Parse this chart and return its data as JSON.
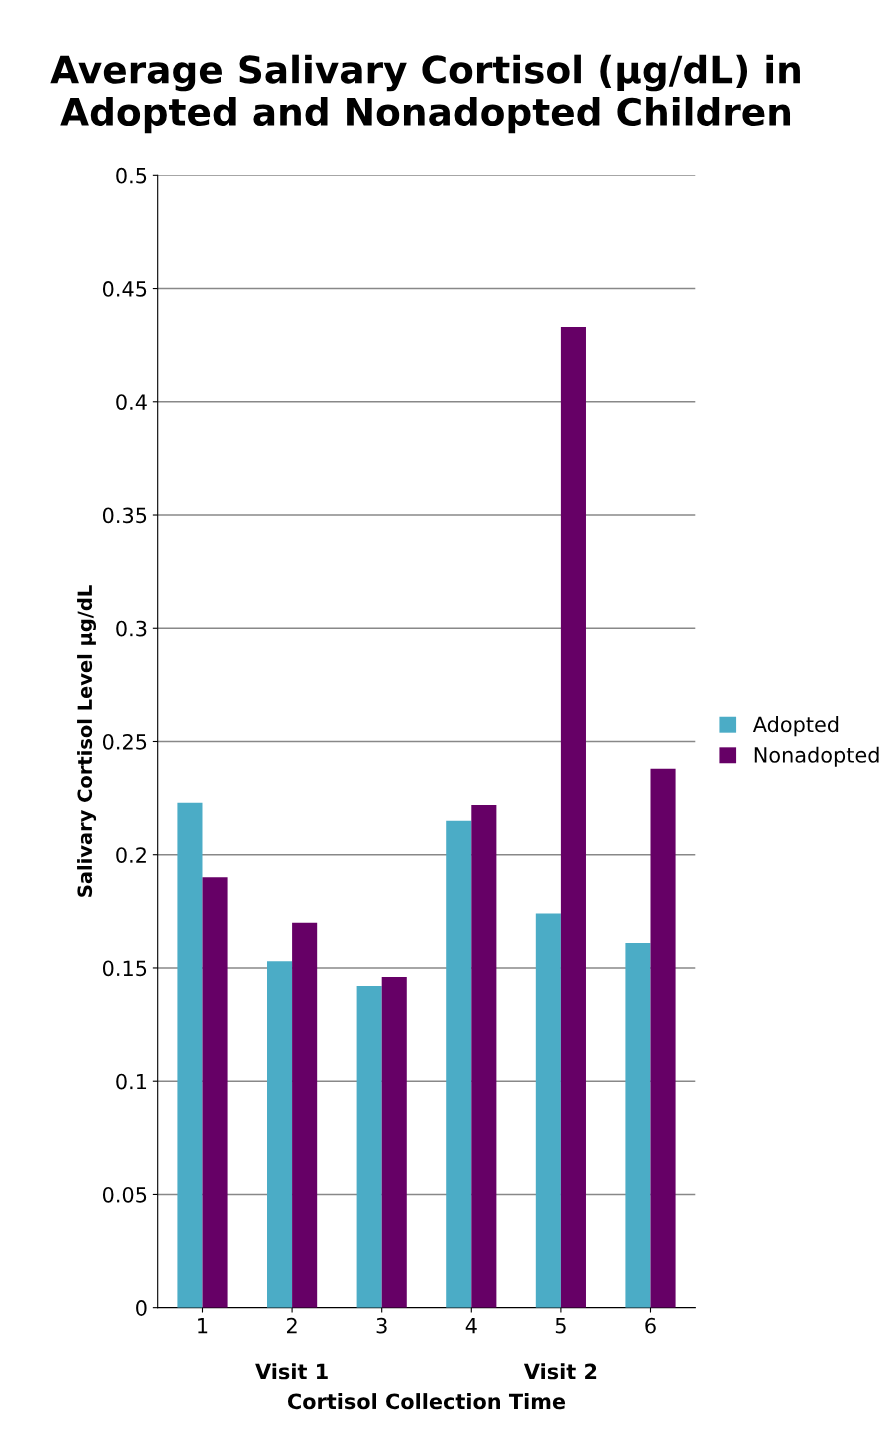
{
  "chart_data": {
    "type": "bar",
    "title": "Average Salivary Cortisol (µg/dL) in Adopted and Nonadopted Children",
    "ylabel": "Salivary Cortisol Level µg/dL",
    "xlabel": "Cortisol Collection Time",
    "categories": [
      "1",
      "2",
      "3",
      "4",
      "5",
      "6"
    ],
    "series": [
      {
        "name": "Adopted",
        "color": "#4bacc6",
        "values": [
          0.223,
          0.153,
          0.142,
          0.215,
          0.174,
          0.161
        ]
      },
      {
        "name": "Nonadopted",
        "color": "#660066",
        "values": [
          0.19,
          0.17,
          0.146,
          0.222,
          0.433,
          0.238
        ]
      }
    ],
    "annotations": [
      "Visit 1",
      "Visit 2"
    ],
    "ylim": [
      0,
      0.5
    ],
    "yticks": [
      0,
      0.05,
      0.1,
      0.15,
      0.2,
      0.25,
      0.3,
      0.35,
      0.4,
      0.45,
      0.5
    ],
    "grid": "y",
    "legend": "right"
  }
}
